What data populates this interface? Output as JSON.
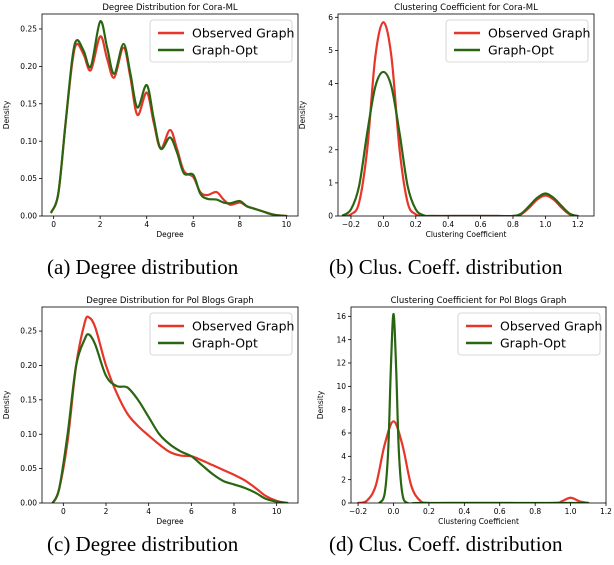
{
  "captions": {
    "a": "(a) Degree distribution",
    "b": "(b) Clus. Coeff. distribution",
    "c": "(c) Degree distribution",
    "d": "(d) Clus. Coeff. distribution"
  },
  "colors": {
    "observed": "#e8352a",
    "opt": "#2a6612"
  },
  "chart_data": [
    {
      "type": "line",
      "title": "Degree Distribution for Cora-ML",
      "xlabel": "Degree",
      "ylabel": "Density",
      "xlim": [
        -0.5,
        10.5
      ],
      "ylim": [
        0,
        0.27
      ],
      "xticks": [
        0,
        2,
        4,
        6,
        8,
        10
      ],
      "yticks": [
        0.0,
        0.05,
        0.1,
        0.15,
        0.2,
        0.25
      ],
      "xtick_labels": [
        "0",
        "2",
        "4",
        "6",
        "8",
        "10"
      ],
      "ytick_labels": [
        "0.00",
        "0.05",
        "0.10",
        "0.15",
        "0.20",
        "0.25"
      ],
      "legend_position": "top-right",
      "series": [
        {
          "name": "Observed Graph",
          "x": [
            -0.1,
            0.2,
            0.5,
            0.8,
            1.0,
            1.3,
            1.6,
            2.0,
            2.3,
            2.6,
            3.0,
            3.3,
            3.6,
            4.0,
            4.3,
            4.6,
            5.0,
            5.3,
            5.6,
            6.0,
            6.3,
            6.6,
            7.0,
            7.3,
            7.6,
            8.0,
            8.3,
            8.6,
            9.0,
            9.3,
            9.6,
            10.0
          ],
          "y": [
            0.005,
            0.03,
            0.12,
            0.205,
            0.23,
            0.215,
            0.195,
            0.24,
            0.21,
            0.185,
            0.225,
            0.185,
            0.135,
            0.165,
            0.125,
            0.09,
            0.115,
            0.09,
            0.06,
            0.052,
            0.032,
            0.028,
            0.032,
            0.022,
            0.015,
            0.018,
            0.013,
            0.01,
            0.006,
            0.003,
            0.001,
            0.0
          ]
        },
        {
          "name": "Graph-Opt",
          "x": [
            -0.1,
            0.2,
            0.5,
            0.8,
            1.0,
            1.3,
            1.6,
            2.0,
            2.3,
            2.6,
            3.0,
            3.3,
            3.6,
            4.0,
            4.3,
            4.6,
            5.0,
            5.3,
            5.6,
            6.0,
            6.3,
            6.6,
            7.0,
            7.3,
            7.6,
            8.0,
            8.3,
            8.6,
            9.0,
            9.3,
            9.6,
            10.0
          ],
          "y": [
            0.005,
            0.03,
            0.12,
            0.21,
            0.235,
            0.22,
            0.2,
            0.26,
            0.225,
            0.19,
            0.23,
            0.19,
            0.145,
            0.175,
            0.13,
            0.09,
            0.105,
            0.085,
            0.057,
            0.055,
            0.03,
            0.023,
            0.022,
            0.018,
            0.017,
            0.02,
            0.013,
            0.01,
            0.006,
            0.003,
            0.001,
            0.0
          ]
        }
      ]
    },
    {
      "type": "line",
      "title": "Clustering Coefficient for Cora-ML",
      "xlabel": "Clustering Coefficient",
      "ylabel": "Density",
      "xlim": [
        -0.28,
        1.3
      ],
      "ylim": [
        0,
        6.1
      ],
      "xticks": [
        -0.2,
        0.0,
        0.2,
        0.4,
        0.6,
        0.8,
        1.0,
        1.2
      ],
      "yticks": [
        0,
        1,
        2,
        3,
        4,
        5,
        6
      ],
      "xtick_labels": [
        "−0.2",
        "0.0",
        "0.2",
        "0.4",
        "0.6",
        "0.8",
        "1.0",
        "1.2"
      ],
      "ytick_labels": [
        "0",
        "1",
        "2",
        "3",
        "4",
        "5",
        "6"
      ],
      "legend_position": "top-right",
      "series": [
        {
          "name": "Observed Graph",
          "x": [
            -0.25,
            -0.2,
            -0.15,
            -0.1,
            -0.05,
            0.0,
            0.05,
            0.1,
            0.15,
            0.2,
            0.25,
            0.3,
            0.5,
            0.7,
            0.8,
            0.85,
            0.9,
            0.95,
            1.0,
            1.05,
            1.1,
            1.15,
            1.2
          ],
          "y": [
            0.0,
            0.05,
            0.4,
            2.0,
            4.8,
            5.85,
            4.8,
            2.0,
            0.4,
            0.05,
            0.0,
            0.0,
            0.0,
            0.0,
            0.0,
            0.05,
            0.25,
            0.5,
            0.62,
            0.5,
            0.25,
            0.05,
            0.0
          ]
        },
        {
          "name": "Graph-Opt",
          "x": [
            -0.25,
            -0.2,
            -0.15,
            -0.1,
            -0.05,
            0.0,
            0.05,
            0.1,
            0.15,
            0.2,
            0.25,
            0.3,
            0.5,
            0.7,
            0.8,
            0.85,
            0.9,
            0.95,
            1.0,
            1.05,
            1.1,
            1.15,
            1.2
          ],
          "y": [
            0.02,
            0.2,
            0.9,
            2.5,
            3.9,
            4.35,
            3.9,
            2.5,
            0.9,
            0.2,
            0.02,
            0.0,
            0.0,
            0.0,
            0.0,
            0.07,
            0.3,
            0.55,
            0.68,
            0.55,
            0.3,
            0.07,
            0.0
          ]
        }
      ]
    },
    {
      "type": "line",
      "title": "Degree Distribution for Pol Blogs Graph",
      "xlabel": "Degree",
      "ylabel": "Density",
      "xlim": [
        -1.0,
        11.0
      ],
      "ylim": [
        0,
        0.285
      ],
      "xticks": [
        0,
        2,
        4,
        6,
        8,
        10
      ],
      "yticks": [
        0.0,
        0.05,
        0.1,
        0.15,
        0.2,
        0.25
      ],
      "xtick_labels": [
        "0",
        "2",
        "4",
        "6",
        "8",
        "10"
      ],
      "ytick_labels": [
        "0.00",
        "0.05",
        "0.10",
        "0.15",
        "0.20",
        "0.25"
      ],
      "legend_position": "top-right",
      "series": [
        {
          "name": "Observed Graph",
          "x": [
            -0.5,
            -0.2,
            0.2,
            0.6,
            1.0,
            1.2,
            1.5,
            2.0,
            2.5,
            3.0,
            3.5,
            4.0,
            4.5,
            5.0,
            5.5,
            6.0,
            6.5,
            7.0,
            7.5,
            8.0,
            8.5,
            9.0,
            9.5,
            10.0,
            10.5
          ],
          "y": [
            0.0,
            0.02,
            0.09,
            0.2,
            0.262,
            0.27,
            0.255,
            0.2,
            0.16,
            0.13,
            0.112,
            0.098,
            0.085,
            0.074,
            0.069,
            0.068,
            0.062,
            0.055,
            0.048,
            0.041,
            0.033,
            0.022,
            0.01,
            0.003,
            0.0
          ]
        },
        {
          "name": "Graph-Opt",
          "x": [
            -0.5,
            -0.2,
            0.2,
            0.6,
            1.0,
            1.2,
            1.5,
            2.0,
            2.5,
            3.0,
            3.5,
            4.0,
            4.5,
            5.0,
            5.5,
            6.0,
            6.5,
            7.0,
            7.5,
            8.0,
            8.5,
            9.0,
            9.5,
            10.0,
            10.5
          ],
          "y": [
            0.0,
            0.02,
            0.1,
            0.2,
            0.238,
            0.245,
            0.23,
            0.185,
            0.17,
            0.168,
            0.15,
            0.125,
            0.1,
            0.085,
            0.075,
            0.068,
            0.055,
            0.042,
            0.032,
            0.027,
            0.022,
            0.015,
            0.006,
            0.002,
            0.0
          ]
        }
      ]
    },
    {
      "type": "line",
      "title": "Clustering Coefficient for Pol Blogs Graph",
      "xlabel": "Clustering Coefficient",
      "ylabel": "Density",
      "xlim": [
        -0.24,
        1.2
      ],
      "ylim": [
        0,
        16.8
      ],
      "xticks": [
        -0.2,
        0.0,
        0.2,
        0.4,
        0.6,
        0.8,
        1.0,
        1.2
      ],
      "yticks": [
        0,
        2,
        4,
        6,
        8,
        10,
        12,
        14,
        16
      ],
      "xtick_labels": [
        "−0.2",
        "0.0",
        "0.2",
        "0.4",
        "0.6",
        "0.8",
        "1.0",
        "1.2"
      ],
      "ytick_labels": [
        "0",
        "2",
        "4",
        "6",
        "8",
        "10",
        "12",
        "14",
        "16"
      ],
      "legend_position": "top-right",
      "series": [
        {
          "name": "Observed Graph",
          "x": [
            -0.2,
            -0.15,
            -0.1,
            -0.05,
            0.0,
            0.05,
            0.1,
            0.15,
            0.2,
            0.3,
            0.6,
            0.9,
            0.95,
            1.0,
            1.05,
            1.1
          ],
          "y": [
            0.0,
            0.2,
            1.5,
            5.0,
            7.0,
            5.0,
            1.5,
            0.2,
            0.0,
            0.0,
            0.0,
            0.0,
            0.15,
            0.45,
            0.15,
            0.0
          ]
        },
        {
          "name": "Graph-Opt",
          "x": [
            -0.08,
            -0.05,
            -0.03,
            -0.015,
            0.0,
            0.015,
            0.03,
            0.05,
            0.08,
            0.15,
            0.5,
            1.1
          ],
          "y": [
            0.0,
            0.8,
            4.5,
            11.5,
            16.2,
            11.5,
            4.5,
            0.8,
            0.0,
            0.0,
            0.0,
            0.0
          ]
        }
      ]
    }
  ]
}
